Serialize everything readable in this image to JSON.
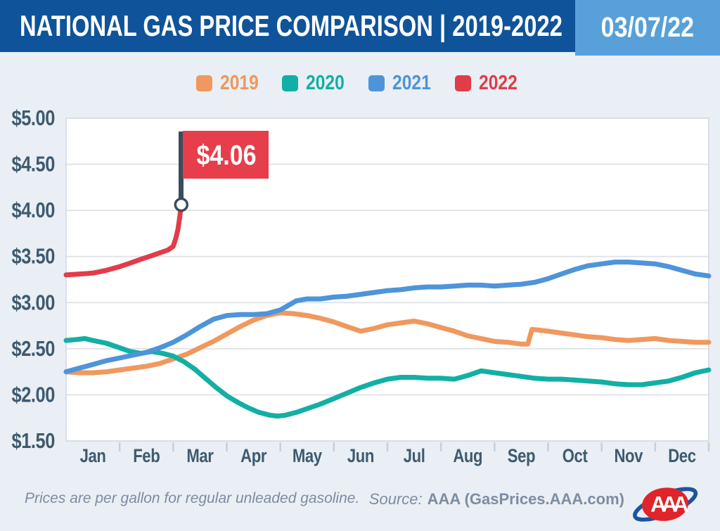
{
  "header": {
    "title": "NATIONAL GAS PRICE COMPARISON | 2019-2022",
    "date": "03/07/22"
  },
  "footer": {
    "note": "Prices are per gallon for regular unleaded gasoline.",
    "source_prefix": "Source:",
    "source_text": "AAA (GasPrices.AAA.com)",
    "logo_text": "AAA"
  },
  "colors": {
    "header_blue": "#0F539B",
    "date_blue": "#57A0D9",
    "page_bg": "#E9EFF4",
    "plot_border": "#D9DEE3",
    "grid_color": "#E0E4E8",
    "tick_color": "#C9CFD6",
    "axis_text": "#3E5A6F",
    "callout_red": "#E63E4B",
    "callout_pole": "#3D4B5C",
    "footer_text": "#7C8CA3",
    "logo_red": "#DF242B",
    "logo_blue": "#1D54A0"
  },
  "chart_data": {
    "type": "line",
    "title": "NATIONAL GAS PRICE COMPARISON | 2019-2022",
    "as_of_date": "03/07/22",
    "y_unit": "USD per gallon",
    "ylim": [
      1.5,
      5.0
    ],
    "y_ticks": [
      5.0,
      4.5,
      4.0,
      3.5,
      3.0,
      2.5,
      2.0,
      1.5
    ],
    "y_tick_labels": [
      "$5.00",
      "$4.50",
      "$4.00",
      "$3.50",
      "$3.00",
      "$2.50",
      "$2.00",
      "$1.50"
    ],
    "x_tick_labels": [
      "Jan",
      "Feb",
      "Mar",
      "Apr",
      "May",
      "Jun",
      "Jul",
      "Aug",
      "Sep",
      "Oct",
      "Nov",
      "Dec"
    ],
    "x_unit": "month position, 0 = Jan 1, 12 = Dec 31",
    "grid": "horizontal",
    "legend_position": "top",
    "series": [
      {
        "name": "2019",
        "color": "#F0985E",
        "points": [
          [
            0,
            2.25
          ],
          [
            0.25,
            2.24
          ],
          [
            0.5,
            2.24
          ],
          [
            0.75,
            2.25
          ],
          [
            1,
            2.27
          ],
          [
            1.25,
            2.29
          ],
          [
            1.5,
            2.31
          ],
          [
            1.75,
            2.34
          ],
          [
            2,
            2.39
          ],
          [
            2.25,
            2.44
          ],
          [
            2.5,
            2.51
          ],
          [
            2.75,
            2.58
          ],
          [
            3,
            2.66
          ],
          [
            3.25,
            2.74
          ],
          [
            3.5,
            2.81
          ],
          [
            3.75,
            2.86
          ],
          [
            4,
            2.89
          ],
          [
            4.25,
            2.88
          ],
          [
            4.5,
            2.86
          ],
          [
            4.75,
            2.83
          ],
          [
            5,
            2.79
          ],
          [
            5.25,
            2.74
          ],
          [
            5.5,
            2.69
          ],
          [
            5.75,
            2.72
          ],
          [
            6,
            2.76
          ],
          [
            6.25,
            2.78
          ],
          [
            6.5,
            2.8
          ],
          [
            6.75,
            2.77
          ],
          [
            7,
            2.73
          ],
          [
            7.25,
            2.69
          ],
          [
            7.5,
            2.64
          ],
          [
            7.75,
            2.61
          ],
          [
            8,
            2.58
          ],
          [
            8.25,
            2.57
          ],
          [
            8.5,
            2.55
          ],
          [
            8.62,
            2.55
          ],
          [
            8.7,
            2.71
          ],
          [
            9,
            2.69
          ],
          [
            9.25,
            2.67
          ],
          [
            9.5,
            2.65
          ],
          [
            9.75,
            2.63
          ],
          [
            10,
            2.62
          ],
          [
            10.25,
            2.6
          ],
          [
            10.5,
            2.59
          ],
          [
            10.75,
            2.6
          ],
          [
            11,
            2.61
          ],
          [
            11.25,
            2.59
          ],
          [
            11.5,
            2.58
          ],
          [
            11.75,
            2.57
          ],
          [
            12,
            2.57
          ]
        ]
      },
      {
        "name": "2020",
        "color": "#12AFA4",
        "points": [
          [
            0,
            2.59
          ],
          [
            0.2,
            2.6
          ],
          [
            0.35,
            2.61
          ],
          [
            0.5,
            2.59
          ],
          [
            0.75,
            2.56
          ],
          [
            1,
            2.51
          ],
          [
            1.2,
            2.47
          ],
          [
            1.4,
            2.45
          ],
          [
            1.6,
            2.47
          ],
          [
            1.8,
            2.45
          ],
          [
            2,
            2.42
          ],
          [
            2.2,
            2.36
          ],
          [
            2.4,
            2.28
          ],
          [
            2.6,
            2.18
          ],
          [
            2.8,
            2.08
          ],
          [
            3,
            1.99
          ],
          [
            3.2,
            1.92
          ],
          [
            3.4,
            1.86
          ],
          [
            3.6,
            1.81
          ],
          [
            3.8,
            1.78
          ],
          [
            3.95,
            1.77
          ],
          [
            4.1,
            1.78
          ],
          [
            4.3,
            1.81
          ],
          [
            4.5,
            1.85
          ],
          [
            4.75,
            1.9
          ],
          [
            5,
            1.96
          ],
          [
            5.25,
            2.02
          ],
          [
            5.5,
            2.08
          ],
          [
            5.75,
            2.13
          ],
          [
            6,
            2.17
          ],
          [
            6.25,
            2.19
          ],
          [
            6.5,
            2.19
          ],
          [
            6.75,
            2.18
          ],
          [
            7,
            2.18
          ],
          [
            7.25,
            2.17
          ],
          [
            7.5,
            2.21
          ],
          [
            7.75,
            2.26
          ],
          [
            8,
            2.24
          ],
          [
            8.25,
            2.22
          ],
          [
            8.5,
            2.2
          ],
          [
            8.75,
            2.18
          ],
          [
            9,
            2.17
          ],
          [
            9.25,
            2.17
          ],
          [
            9.5,
            2.16
          ],
          [
            9.75,
            2.15
          ],
          [
            10,
            2.14
          ],
          [
            10.25,
            2.12
          ],
          [
            10.5,
            2.11
          ],
          [
            10.75,
            2.11
          ],
          [
            11,
            2.13
          ],
          [
            11.25,
            2.15
          ],
          [
            11.5,
            2.19
          ],
          [
            11.75,
            2.24
          ],
          [
            12,
            2.27
          ]
        ]
      },
      {
        "name": "2021",
        "color": "#4E94DA",
        "points": [
          [
            0,
            2.25
          ],
          [
            0.25,
            2.29
          ],
          [
            0.5,
            2.33
          ],
          [
            0.75,
            2.37
          ],
          [
            1,
            2.4
          ],
          [
            1.25,
            2.43
          ],
          [
            1.5,
            2.46
          ],
          [
            1.75,
            2.51
          ],
          [
            2,
            2.57
          ],
          [
            2.25,
            2.65
          ],
          [
            2.5,
            2.74
          ],
          [
            2.75,
            2.82
          ],
          [
            3,
            2.86
          ],
          [
            3.25,
            2.87
          ],
          [
            3.5,
            2.87
          ],
          [
            3.75,
            2.88
          ],
          [
            4,
            2.92
          ],
          [
            4.15,
            2.97
          ],
          [
            4.3,
            3.02
          ],
          [
            4.5,
            3.04
          ],
          [
            4.75,
            3.04
          ],
          [
            5,
            3.06
          ],
          [
            5.25,
            3.07
          ],
          [
            5.5,
            3.09
          ],
          [
            5.75,
            3.11
          ],
          [
            6,
            3.13
          ],
          [
            6.25,
            3.14
          ],
          [
            6.5,
            3.16
          ],
          [
            6.75,
            3.17
          ],
          [
            7,
            3.17
          ],
          [
            7.25,
            3.18
          ],
          [
            7.5,
            3.19
          ],
          [
            7.75,
            3.19
          ],
          [
            8,
            3.18
          ],
          [
            8.25,
            3.19
          ],
          [
            8.5,
            3.2
          ],
          [
            8.75,
            3.22
          ],
          [
            9,
            3.26
          ],
          [
            9.25,
            3.31
          ],
          [
            9.5,
            3.36
          ],
          [
            9.75,
            3.4
          ],
          [
            10,
            3.42
          ],
          [
            10.25,
            3.44
          ],
          [
            10.5,
            3.44
          ],
          [
            10.75,
            3.43
          ],
          [
            11,
            3.42
          ],
          [
            11.25,
            3.39
          ],
          [
            11.5,
            3.35
          ],
          [
            11.75,
            3.31
          ],
          [
            12,
            3.29
          ]
        ]
      },
      {
        "name": "2022",
        "color": "#E23C49",
        "points": [
          [
            0,
            3.3
          ],
          [
            0.25,
            3.31
          ],
          [
            0.5,
            3.32
          ],
          [
            0.75,
            3.35
          ],
          [
            1,
            3.39
          ],
          [
            1.2,
            3.43
          ],
          [
            1.4,
            3.47
          ],
          [
            1.6,
            3.51
          ],
          [
            1.75,
            3.54
          ],
          [
            1.9,
            3.57
          ],
          [
            2,
            3.61
          ],
          [
            2.05,
            3.7
          ],
          [
            2.09,
            3.8
          ],
          [
            2.12,
            3.92
          ],
          [
            2.15,
            4.06
          ]
        ]
      }
    ],
    "callout": {
      "label": "$4.06",
      "value": 4.06,
      "series": "2022"
    }
  }
}
